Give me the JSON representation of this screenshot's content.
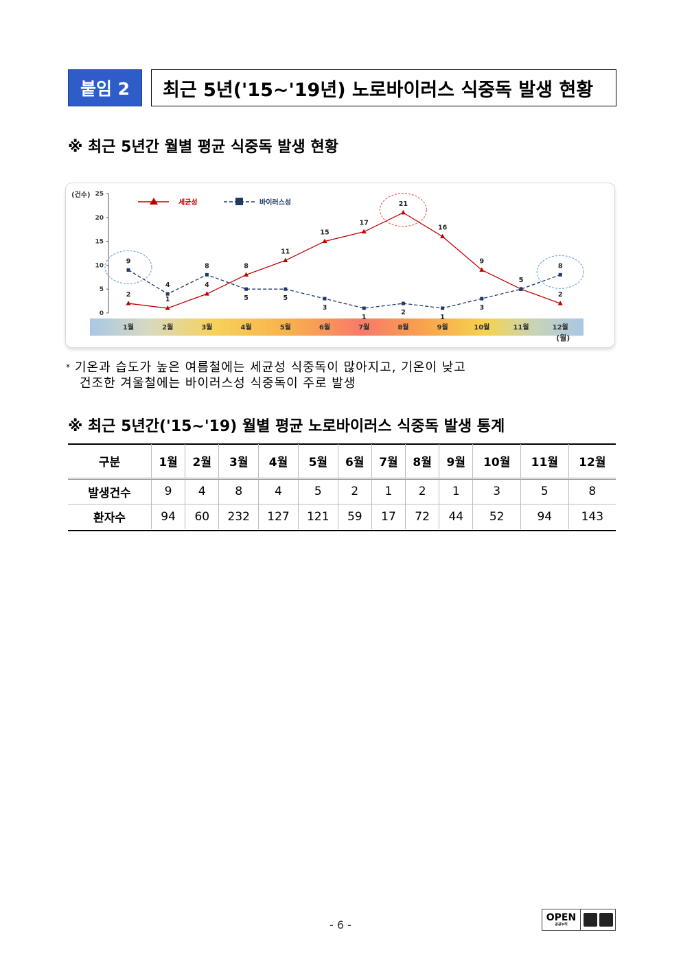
{
  "header": {
    "tag": "붙임 2",
    "title": "최근 5년('15~'19년) 노로바이러스 식중독 발생 현황"
  },
  "section1": {
    "title": "※ 최근 5년간 월별 평균 식중독 발생 현황"
  },
  "chart_data": {
    "type": "line",
    "categories": [
      "1월",
      "2월",
      "3월",
      "4월",
      "5월",
      "6월",
      "7월",
      "8월",
      "9월",
      "10월",
      "11월",
      "12월"
    ],
    "ylabel": "(건수)",
    "xlabel": "(월)",
    "ylim": [
      0,
      25
    ],
    "yticks": [
      0,
      5,
      10,
      15,
      20,
      25
    ],
    "legend_position": "top-left",
    "grid": false,
    "series": [
      {
        "name": "세균성",
        "values": [
          2,
          1,
          4,
          8,
          11,
          15,
          17,
          21,
          16,
          9,
          5,
          2
        ],
        "color": "#c00000",
        "marker": "triangle",
        "style": "solid"
      },
      {
        "name": "바이러스성",
        "values": [
          9,
          4,
          8,
          5,
          5,
          3,
          1,
          2,
          1,
          3,
          5,
          8
        ],
        "color": "#1f3864",
        "marker": "square",
        "style": "dashed"
      }
    ],
    "highlights": [
      {
        "series": 1,
        "index": 0,
        "color": "#6fa8dc"
      },
      {
        "series": 0,
        "index": 7,
        "color": "#e06060"
      },
      {
        "series": 1,
        "index": 11,
        "color": "#6fa8dc"
      }
    ]
  },
  "note": {
    "star": "*",
    "line1": "기온과 습도가 높은 여름철에는 세균성 식중독이 많아지고, 기온이 낮고",
    "line2": "건조한 겨울철에는 바이러스성 식중독이 주로 발생"
  },
  "section2": {
    "title": "※ 최근 5년간('15~'19) 월별 평균 노로바이러스 식중독 발생 통계"
  },
  "table": {
    "headers": [
      "구분",
      "1월",
      "2월",
      "3월",
      "4월",
      "5월",
      "6월",
      "7월",
      "8월",
      "9월",
      "10월",
      "11월",
      "12월"
    ],
    "rows": [
      {
        "label": "발생건수",
        "values": [
          "9",
          "4",
          "8",
          "4",
          "5",
          "2",
          "1",
          "2",
          "1",
          "3",
          "5",
          "8"
        ]
      },
      {
        "label": "환자수",
        "values": [
          "94",
          "60",
          "232",
          "127",
          "121",
          "59",
          "17",
          "72",
          "44",
          "52",
          "94",
          "143"
        ]
      }
    ]
  },
  "footer": {
    "page": "- 6 -",
    "logo_text": "OPEN",
    "logo_sub": "공공누리"
  }
}
